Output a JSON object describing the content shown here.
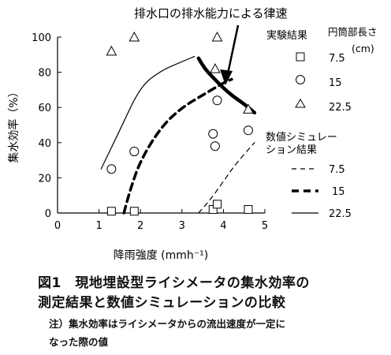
{
  "chart_data": {
    "type": "scatter",
    "title": "",
    "xlabel": "降雨強度 (mmh⁻¹)",
    "ylabel": "集水効率（%）",
    "xlim": [
      0,
      5
    ],
    "ylim": [
      0,
      100
    ],
    "x_ticks": [
      "0",
      "1",
      "2",
      "3",
      "4",
      "5"
    ],
    "y_ticks": [
      "0",
      "20",
      "40",
      "60",
      "80",
      "100"
    ],
    "grid": false,
    "annotation": "排水口の排水能力による律速",
    "legend_title_measured": "実験結果",
    "legend_title_param": "円筒部長さ",
    "legend_unit": "(cm)",
    "legend_title_sim_line1": "数値シミュレー",
    "legend_title_sim_line2": "ション結果",
    "measured": [
      {
        "name": "7.5",
        "marker": "square",
        "points": [
          [
            1.3,
            1
          ],
          [
            1.85,
            1
          ],
          [
            3.75,
            2
          ],
          [
            3.85,
            5
          ],
          [
            4.6,
            2
          ]
        ]
      },
      {
        "name": "15",
        "marker": "circle",
        "points": [
          [
            1.3,
            25
          ],
          [
            1.85,
            35
          ],
          [
            3.75,
            45
          ],
          [
            3.8,
            38
          ],
          [
            3.85,
            64
          ],
          [
            4.6,
            47
          ]
        ]
      },
      {
        "name": "22.5",
        "marker": "triangle",
        "points": [
          [
            1.3,
            92
          ],
          [
            1.85,
            100
          ],
          [
            3.8,
            82
          ],
          [
            3.85,
            100
          ],
          [
            4.6,
            59
          ]
        ]
      }
    ],
    "simulated": [
      {
        "name": "7.5",
        "style": "thin-dashed",
        "points": [
          [
            3.4,
            0
          ],
          [
            3.7,
            8
          ],
          [
            4.0,
            18
          ],
          [
            4.3,
            28
          ],
          [
            4.75,
            40
          ]
        ]
      },
      {
        "name": "15",
        "style": "thick-dashed",
        "points": [
          [
            1.6,
            0
          ],
          [
            1.75,
            13
          ],
          [
            2.0,
            30
          ],
          [
            2.5,
            49
          ],
          [
            3.0,
            60
          ],
          [
            3.5,
            67
          ],
          [
            4.0,
            74
          ],
          [
            4.2,
            76
          ]
        ]
      },
      {
        "name": "22.5",
        "style": "thin-solid",
        "points": [
          [
            1.05,
            25
          ],
          [
            1.5,
            47
          ],
          [
            2.0,
            72
          ],
          [
            2.5,
            81
          ],
          [
            3.0,
            86
          ],
          [
            3.3,
            89
          ]
        ]
      },
      {
        "name": "律速",
        "style": "thick-solid",
        "points": [
          [
            3.4,
            88
          ],
          [
            3.55,
            82
          ],
          [
            3.75,
            77
          ],
          [
            4.0,
            71
          ],
          [
            4.25,
            66
          ],
          [
            4.5,
            62
          ],
          [
            4.75,
            57
          ]
        ]
      }
    ]
  },
  "captions": {
    "line1": "図1　現地埋設型ライシメータの集水効率の",
    "line2": "測定結果と数値シミュレーションの比較",
    "note1": "注）集水効率はライシメータからの流出速度が一定に",
    "note2": "なった際の値"
  }
}
